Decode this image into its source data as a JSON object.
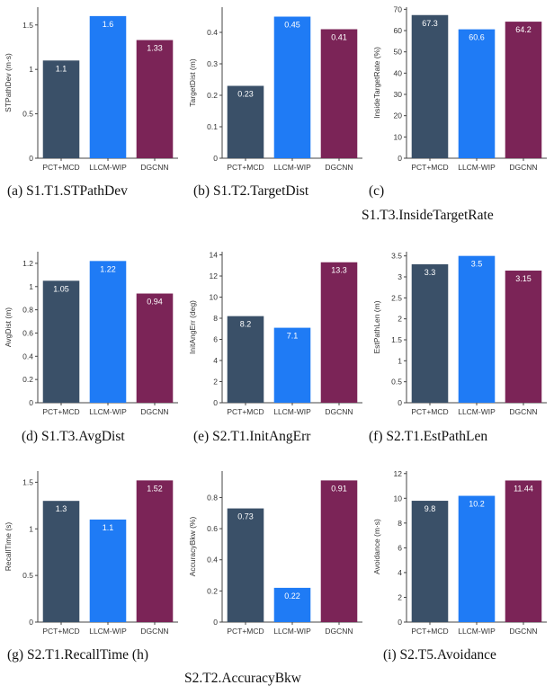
{
  "colors": [
    "#3a5068",
    "#1f7bf5",
    "#7b2457"
  ],
  "chart_data": [
    {
      "type": "bar",
      "caption": "(a) S1.T1.STPathDev",
      "ylabel": "STPathDev (m·s)",
      "categories": [
        "PCT+MCD",
        "LLCM-WIP",
        "DGCNN"
      ],
      "values": [
        1.1,
        1.6,
        1.33
      ],
      "value_labels": [
        "1.1",
        "1.6",
        "1.33"
      ],
      "ylim": [
        0,
        1.7
      ],
      "yticks": [
        0,
        0.5,
        1,
        1.5
      ],
      "ytick_labels": [
        "0",
        "0.5",
        "1",
        "1.5"
      ]
    },
    {
      "type": "bar",
      "caption": "(b) S1.T2.TargetDist",
      "ylabel": "TargetDist (m)",
      "categories": [
        "PCT+MCD",
        "LLCM-WIP",
        "DGCNN"
      ],
      "values": [
        0.23,
        0.45,
        0.41
      ],
      "value_labels": [
        "0.23",
        "0.45",
        "0.41"
      ],
      "ylim": [
        0,
        0.48
      ],
      "yticks": [
        0,
        0.1,
        0.2,
        0.3,
        0.4
      ],
      "ytick_labels": [
        "0",
        "0.1",
        "0.2",
        "0.3",
        "0.4"
      ]
    },
    {
      "type": "bar",
      "caption_lines": [
        "(c)",
        "S1.T3.InsideTargetRate"
      ],
      "ylabel": "InsideTargetRate (%)",
      "categories": [
        "PCT+MCD",
        "LLCM-WIP",
        "DGCNN"
      ],
      "values": [
        67.3,
        60.6,
        64.2
      ],
      "value_labels": [
        "67.3",
        "60.6",
        "64.2"
      ],
      "ylim": [
        0,
        71
      ],
      "yticks": [
        0,
        10,
        20,
        30,
        40,
        50,
        60,
        70
      ],
      "ytick_labels": [
        "0",
        "10",
        "20",
        "30",
        "40",
        "50",
        "60",
        "70"
      ]
    },
    {
      "type": "bar",
      "caption": "(d) S1.T3.AvgDist",
      "ylabel": "AvgDist (m)",
      "categories": [
        "PCT+MCD",
        "LLCM-WIP",
        "DGCNN"
      ],
      "values": [
        1.05,
        1.22,
        0.94
      ],
      "value_labels": [
        "1.05",
        "1.22",
        "0.94"
      ],
      "ylim": [
        0,
        1.3
      ],
      "yticks": [
        0,
        0.2,
        0.4,
        0.6,
        0.8,
        1,
        1.2
      ],
      "ytick_labels": [
        "0",
        "0.2",
        "0.4",
        "0.6",
        "0.8",
        "1",
        "1.2"
      ]
    },
    {
      "type": "bar",
      "caption": "(e) S2.T1.InitAngErr",
      "ylabel": "InitAngErr (deg)",
      "categories": [
        "PCT+MCD",
        "LLCM-WIP",
        "DGCNN"
      ],
      "values": [
        8.2,
        7.1,
        13.3
      ],
      "value_labels": [
        "8.2",
        "7.1",
        "13.3"
      ],
      "ylim": [
        0,
        14.3
      ],
      "yticks": [
        0,
        2,
        4,
        6,
        8,
        10,
        12,
        14
      ],
      "ytick_labels": [
        "0",
        "2",
        "4",
        "6",
        "8",
        "10",
        "12",
        "14"
      ]
    },
    {
      "type": "bar",
      "caption": "(f) S2.T1.EstPathLen",
      "ylabel": "EstPathLen (m)",
      "categories": [
        "PCT+MCD",
        "LLCM-WIP",
        "DGCNN"
      ],
      "values": [
        3.3,
        3.5,
        3.15
      ],
      "value_labels": [
        "3.3",
        "3.5",
        "3.15"
      ],
      "ylim": [
        0,
        3.6
      ],
      "yticks": [
        0,
        0.5,
        1,
        1.5,
        2,
        2.5,
        3,
        3.5
      ],
      "ytick_labels": [
        "0",
        "0.5",
        "1",
        "1.5",
        "2",
        "2.5",
        "3",
        "3.5"
      ]
    },
    {
      "type": "bar",
      "caption": "(g) S2.T1.RecallTime (h)",
      "ylabel": "RecallTime (s)",
      "categories": [
        "PCT+MCD",
        "LLCM-WIP",
        "DGCNN"
      ],
      "values": [
        1.3,
        1.1,
        1.52
      ],
      "value_labels": [
        "1.3",
        "1.1",
        "1.52"
      ],
      "ylim": [
        0,
        1.62
      ],
      "yticks": [
        0,
        0.5,
        1,
        1.5
      ],
      "ytick_labels": [
        "0",
        "0.5",
        "1",
        "1.5"
      ]
    },
    {
      "type": "bar",
      "caption_second": "S2.T2.AccuracyBkw",
      "ylabel": "AccuracyBkw (%)",
      "categories": [
        "PCT+MCD",
        "LLCM-WIP",
        "DGCNN"
      ],
      "values": [
        0.73,
        0.22,
        0.91
      ],
      "value_labels": [
        "0.73",
        "0.22",
        "0.91"
      ],
      "ylim": [
        0,
        0.97
      ],
      "yticks": [
        0,
        0.2,
        0.4,
        0.6,
        0.8
      ],
      "ytick_labels": [
        "0",
        "0.2",
        "0.4",
        "0.6",
        "0.8"
      ]
    },
    {
      "type": "bar",
      "caption": "(i) S2.T5.Avoidance",
      "ylabel": "Avoidance (m·s)",
      "categories": [
        "PCT+MCD",
        "LLCM-WIP",
        "DGCNN"
      ],
      "values": [
        9.8,
        10.2,
        11.44
      ],
      "value_labels": [
        "9.8",
        "10.2",
        "11.44"
      ],
      "ylim": [
        0,
        12.2
      ],
      "yticks": [
        0,
        2,
        4,
        6,
        8,
        10,
        12
      ],
      "ytick_labels": [
        "0",
        "2",
        "4",
        "6",
        "8",
        "10",
        "12"
      ]
    }
  ]
}
